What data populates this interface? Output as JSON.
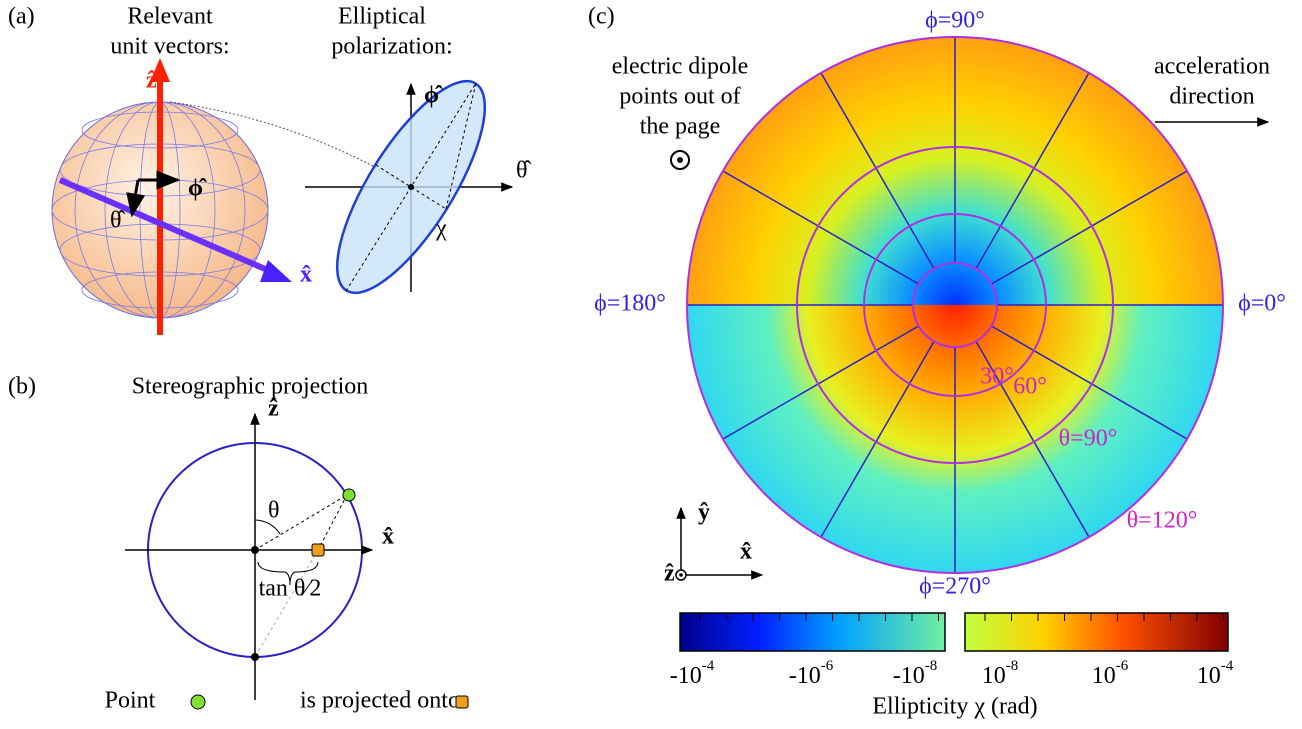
{
  "panel_a": {
    "label": "(a)",
    "title_left": [
      "Relevant",
      "unit vectors:"
    ],
    "title_right": [
      "Elliptical",
      "polarization:"
    ],
    "vec_z": "ẑ",
    "vec_x": "x̂",
    "vec_theta": "θ̂",
    "vec_phi": "ϕ̂",
    "ell_phi": "ϕ̂",
    "ell_theta": "θ̂",
    "chi": "χ"
  },
  "panel_b": {
    "label": "(b)",
    "title": "Stereographic projection",
    "axis_z": "ẑ",
    "axis_x": "x̂",
    "theta": "θ",
    "tan_label": "tan θ⁄2",
    "caption_start": "Point",
    "caption_end": "is projected onto"
  },
  "panel_c": {
    "label": "(c)",
    "phi_labels": [
      "ϕ=90°",
      "ϕ=180°",
      "ϕ=0°",
      "ϕ=270°"
    ],
    "theta_labels": [
      "30°",
      "60°",
      "θ=90°",
      "θ=120°"
    ],
    "dipole_note": [
      "electric dipole",
      "points out of",
      "the page"
    ],
    "accel_note": [
      "acceleration",
      "direction"
    ],
    "frame": {
      "y": "ŷ",
      "x": "x̂",
      "z": "ẑ"
    },
    "colorbar": {
      "ticks": [
        {
          "base": "-10",
          "exp": "-4"
        },
        {
          "base": "-10",
          "exp": "-6"
        },
        {
          "base": "-10",
          "exp": "-8"
        },
        {
          "base": "10",
          "exp": "-8"
        },
        {
          "base": "10",
          "exp": "-6"
        },
        {
          "base": "10",
          "exp": "-4"
        }
      ],
      "title": "Ellipticity χ (rad)"
    }
  }
}
